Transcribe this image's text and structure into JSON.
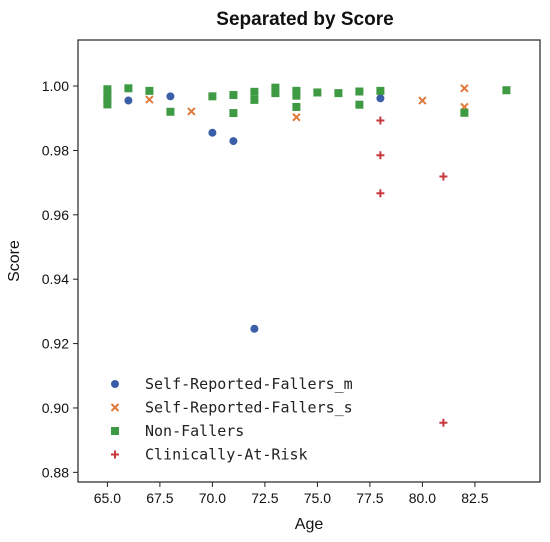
{
  "chart_data": {
    "type": "scatter",
    "title": "Separated by Score",
    "xlabel": "Age",
    "ylabel": "Score",
    "xlim": [
      63.6,
      85.6
    ],
    "ylim": [
      0.877,
      1.0143
    ],
    "x_ticks": [
      65.0,
      67.5,
      70.0,
      72.5,
      75.0,
      77.5,
      80.0,
      82.5
    ],
    "x_tick_labels": [
      "65.0",
      "67.5",
      "70.0",
      "72.5",
      "75.0",
      "77.5",
      "80.0",
      "82.5"
    ],
    "y_ticks": [
      0.88,
      0.9,
      0.92,
      0.94,
      0.96,
      0.98,
      1.0
    ],
    "y_tick_labels": [
      "0.88",
      "0.90",
      "0.92",
      "0.94",
      "0.96",
      "0.98",
      "1.00"
    ],
    "grid": false,
    "legend": "bottom-left",
    "series": [
      {
        "name": "Self-Reported-Fallers_m",
        "marker": "circle",
        "color": "#3a5fa8",
        "points": [
          [
            66,
            0.9955
          ],
          [
            68,
            0.9968
          ],
          [
            70,
            0.9855
          ],
          [
            71,
            0.9829
          ],
          [
            72,
            0.9246
          ],
          [
            78,
            0.9962
          ]
        ]
      },
      {
        "name": "Self-Reported-Fallers_s",
        "marker": "x",
        "color": "#e07a3a",
        "points": [
          [
            67,
            0.9958
          ],
          [
            69,
            0.9921
          ],
          [
            74,
            0.9903
          ],
          [
            80,
            0.9955
          ],
          [
            82,
            0.9993
          ],
          [
            82,
            0.9935
          ]
        ]
      },
      {
        "name": "Non-Fallers",
        "marker": "square",
        "color": "#3f9a44",
        "points": [
          [
            65,
            0.999
          ],
          [
            65,
            0.9974
          ],
          [
            65,
            0.9958
          ],
          [
            65,
            0.9943
          ],
          [
            66,
            0.9993
          ],
          [
            67,
            0.9985
          ],
          [
            68,
            0.992
          ],
          [
            70,
            0.9968
          ],
          [
            71,
            0.9972
          ],
          [
            71,
            0.9916
          ],
          [
            72,
            0.9982
          ],
          [
            72,
            0.9957
          ],
          [
            73,
            0.9995
          ],
          [
            73,
            0.9978
          ],
          [
            74,
            0.9985
          ],
          [
            74,
            0.997
          ],
          [
            74,
            0.9935
          ],
          [
            75,
            0.998
          ],
          [
            76,
            0.9978
          ],
          [
            77,
            0.9983
          ],
          [
            77,
            0.9942
          ],
          [
            78,
            0.9985
          ],
          [
            82,
            0.9917
          ],
          [
            84,
            0.9987
          ]
        ]
      },
      {
        "name": "Clinically-At-Risk",
        "marker": "plus",
        "color": "#c8383a",
        "points": [
          [
            78,
            0.9893
          ],
          [
            78,
            0.9785
          ],
          [
            78,
            0.9667
          ],
          [
            81,
            0.9719
          ],
          [
            81,
            0.8954
          ]
        ]
      }
    ]
  }
}
